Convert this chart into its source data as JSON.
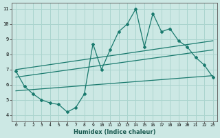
{
  "title": "",
  "xlabel": "Humidex (Indice chaleur)",
  "ylabel": "",
  "bg_color": "#cce8e4",
  "grid_color": "#aad4ce",
  "line_color": "#1a7a6e",
  "x_ticks": [
    0,
    1,
    2,
    3,
    4,
    5,
    6,
    7,
    8,
    9,
    10,
    11,
    12,
    13,
    14,
    15,
    16,
    17,
    18,
    19,
    20,
    21,
    22,
    23
  ],
  "y_ticks": [
    4,
    5,
    6,
    7,
    8,
    9,
    10,
    11
  ],
  "xlim": [
    -0.5,
    23.5
  ],
  "ylim": [
    3.6,
    11.4
  ],
  "main_line_x": [
    0,
    1,
    2,
    3,
    4,
    5,
    6,
    7,
    8,
    9,
    10,
    11,
    12,
    13,
    14,
    15,
    16,
    17,
    18,
    19,
    20,
    21,
    22,
    23
  ],
  "main_line_y": [
    6.9,
    5.9,
    5.4,
    5.0,
    4.8,
    4.7,
    4.2,
    4.5,
    5.4,
    8.7,
    7.0,
    8.3,
    9.5,
    10.0,
    11.0,
    8.5,
    10.7,
    9.5,
    9.7,
    8.9,
    8.5,
    7.8,
    7.3,
    6.5
  ],
  "upper_line_x": [
    0,
    23
  ],
  "upper_line_y": [
    7.0,
    8.9
  ],
  "middle_line_x": [
    0,
    23
  ],
  "middle_line_y": [
    6.5,
    8.3
  ],
  "lower_line_x": [
    0,
    23
  ],
  "lower_line_y": [
    5.6,
    6.6
  ]
}
